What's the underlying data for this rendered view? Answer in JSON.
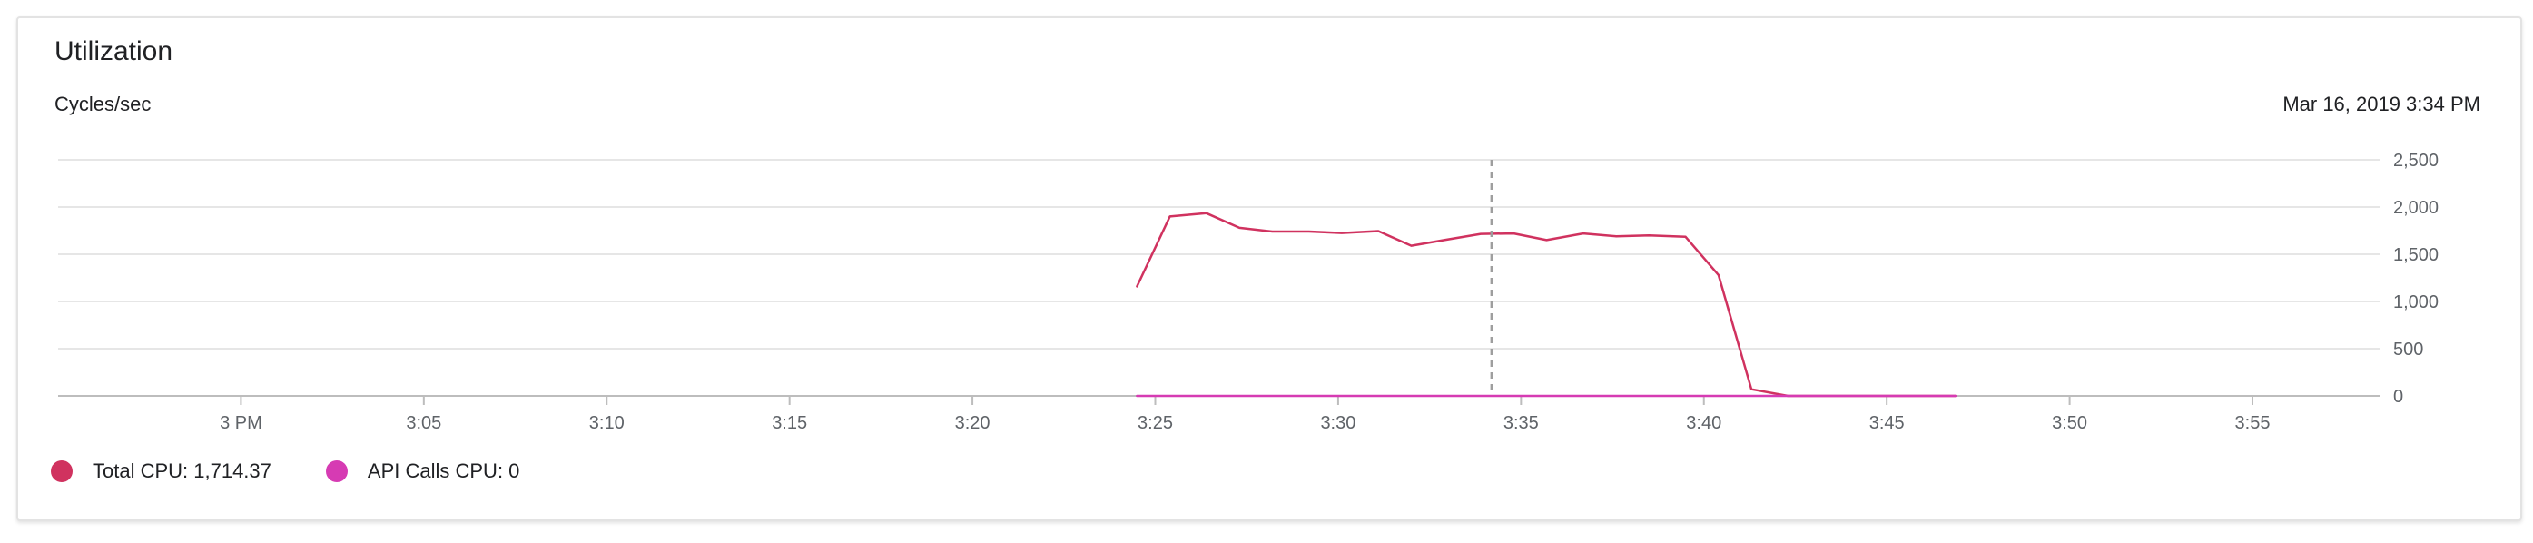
{
  "card": {
    "title": "Utilization",
    "units": "Cycles/sec",
    "timestamp": "Mar 16, 2019 3:34 PM"
  },
  "colors": {
    "total_cpu": "#d0325f",
    "api_calls_cpu": "#d63bb3",
    "grid": "#e6e6e6",
    "axis": "#bdbdbd",
    "cursor": "#9e9e9e"
  },
  "legend": {
    "total_cpu_label": "Total CPU: 1,714.37",
    "api_calls_label": "API Calls CPU: 0"
  },
  "chart_data": {
    "type": "line",
    "title": "Utilization",
    "ylabel": "Cycles/sec",
    "xlabel": "",
    "ylim": [
      0,
      2500
    ],
    "xlim": [
      -5,
      58.5
    ],
    "y_ticks": [
      {
        "value": 0,
        "label": "0"
      },
      {
        "value": 500,
        "label": "500"
      },
      {
        "value": 1000,
        "label": "1,000"
      },
      {
        "value": 1500,
        "label": "1,500"
      },
      {
        "value": 2000,
        "label": "2,000"
      },
      {
        "value": 2500,
        "label": "2,500"
      }
    ],
    "x_ticks": [
      {
        "value": 0,
        "label": "3 PM"
      },
      {
        "value": 5,
        "label": "3:05"
      },
      {
        "value": 10,
        "label": "3:10"
      },
      {
        "value": 15,
        "label": "3:15"
      },
      {
        "value": 20,
        "label": "3:20"
      },
      {
        "value": 25,
        "label": "3:25"
      },
      {
        "value": 30,
        "label": "3:30"
      },
      {
        "value": 35,
        "label": "3:35"
      },
      {
        "value": 40,
        "label": "3:40"
      },
      {
        "value": 45,
        "label": "3:45"
      },
      {
        "value": 50,
        "label": "3:50"
      },
      {
        "value": 55,
        "label": "3:55"
      }
    ],
    "cursor_x": 34.2,
    "grid": true,
    "legend_position": "bottom-left",
    "series": [
      {
        "name": "Total CPU",
        "color": "#d0325f",
        "points": [
          [
            24.5,
            1160
          ],
          [
            25.4,
            1900
          ],
          [
            26.4,
            1935
          ],
          [
            27.3,
            1780
          ],
          [
            28.2,
            1740
          ],
          [
            29.2,
            1740
          ],
          [
            30.1,
            1725
          ],
          [
            31.1,
            1745
          ],
          [
            32.0,
            1590
          ],
          [
            32.9,
            1650
          ],
          [
            33.9,
            1715
          ],
          [
            34.8,
            1720
          ],
          [
            35.7,
            1650
          ],
          [
            36.7,
            1720
          ],
          [
            37.6,
            1690
          ],
          [
            38.5,
            1700
          ],
          [
            39.5,
            1685
          ],
          [
            40.4,
            1280
          ],
          [
            41.3,
            70
          ],
          [
            42.3,
            0
          ],
          [
            43.2,
            0
          ],
          [
            44.1,
            0
          ],
          [
            45.1,
            0
          ],
          [
            46.0,
            0
          ],
          [
            46.9,
            0
          ]
        ]
      },
      {
        "name": "API Calls CPU",
        "color": "#d63bb3",
        "points": [
          [
            24.5,
            0
          ],
          [
            30.0,
            0
          ],
          [
            35.0,
            0
          ],
          [
            40.0,
            0
          ],
          [
            46.9,
            0
          ]
        ]
      }
    ]
  }
}
